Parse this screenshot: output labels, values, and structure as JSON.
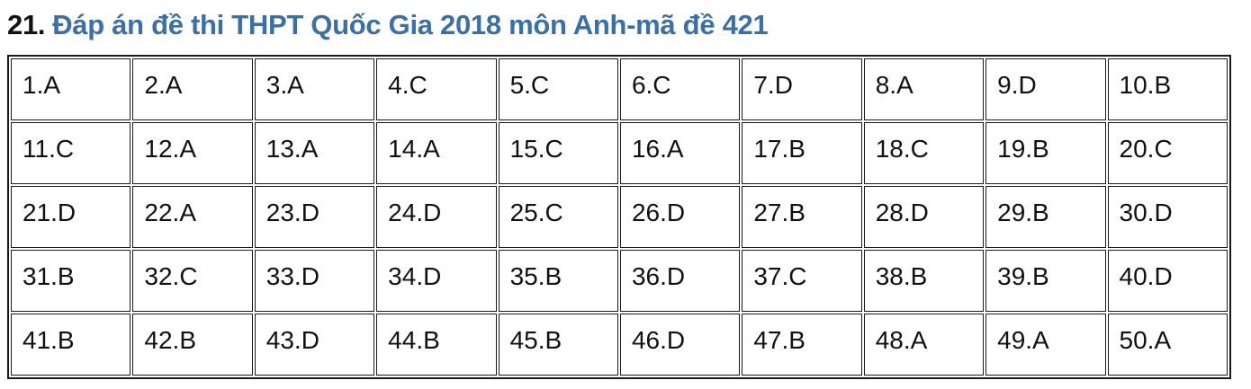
{
  "page": {
    "title_number": "21.",
    "title_text": "Đáp án đề thi THPT Quốc Gia 2018 môn Anh-mã đề 421",
    "title_accent_color": "#3a6fa9"
  },
  "answer_table": {
    "columns_per_row": 10,
    "rows": [
      [
        "1.A",
        "2.A",
        "3.A",
        "4.C",
        "5.C",
        "6.C",
        "7.D",
        "8.A",
        "9.D",
        "10.B"
      ],
      [
        "11.C",
        "12.A",
        "13.A",
        "14.A",
        "15.C",
        "16.A",
        "17.B",
        "18.C",
        "19.B",
        "20.C"
      ],
      [
        "21.D",
        "22.A",
        "23.D",
        "24.D",
        "25.C",
        "26.D",
        "27.B",
        "28.D",
        "29.B",
        "30.D"
      ],
      [
        "31.B",
        "32.C",
        "33.D",
        "34.D",
        "35.B",
        "36.D",
        "37.C",
        "38.B",
        "39.B",
        "40.D"
      ],
      [
        "41.B",
        "42.B",
        "43.D",
        "44.B",
        "45.B",
        "46.D",
        "47.B",
        "48.A",
        "49.A",
        "50.A"
      ]
    ]
  }
}
